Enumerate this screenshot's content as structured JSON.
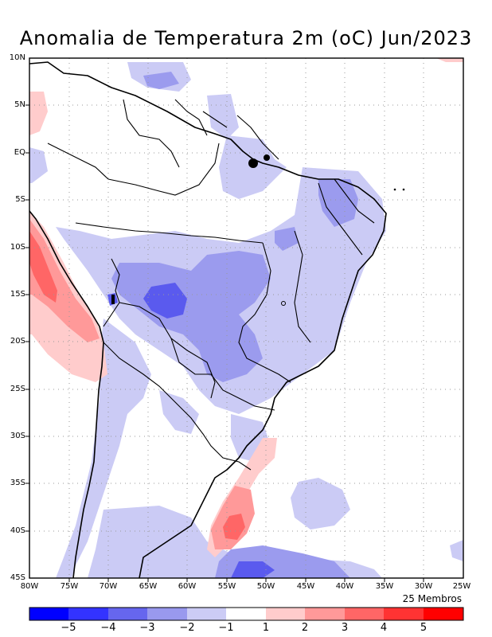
{
  "title": "Anomalia de Temperatura 2m (oC) Jun/2023",
  "members_note": "25 Membros",
  "lat_labels": [
    "10N",
    "5N",
    "EQ",
    "5S",
    "10S",
    "15S",
    "20S",
    "25S",
    "30S",
    "35S",
    "40S",
    "45S"
  ],
  "lon_labels": [
    "80W",
    "75W",
    "70W",
    "65W",
    "60W",
    "55W",
    "50W",
    "45W",
    "40W",
    "35W",
    "30W",
    "25W"
  ],
  "colorbar": {
    "labels": [
      "−5",
      "−4",
      "−3",
      "−2",
      "−1",
      "1",
      "2",
      "3",
      "4",
      "5"
    ],
    "colors": [
      "#0000ff",
      "#3333ff",
      "#6666ee",
      "#9999ee",
      "#ccccf5",
      "#ffffff",
      "#ffcccc",
      "#ff9999",
      "#ff6666",
      "#ff3333",
      "#ff0000"
    ]
  },
  "colors": {
    "strong_negative": "#5a5aee",
    "negative": "#8f8fee",
    "weak_negative": "#cbcbf5",
    "weak_positive": "#ffcccc",
    "positive": "#ff9999",
    "strong_positive": "#ff6666"
  }
}
